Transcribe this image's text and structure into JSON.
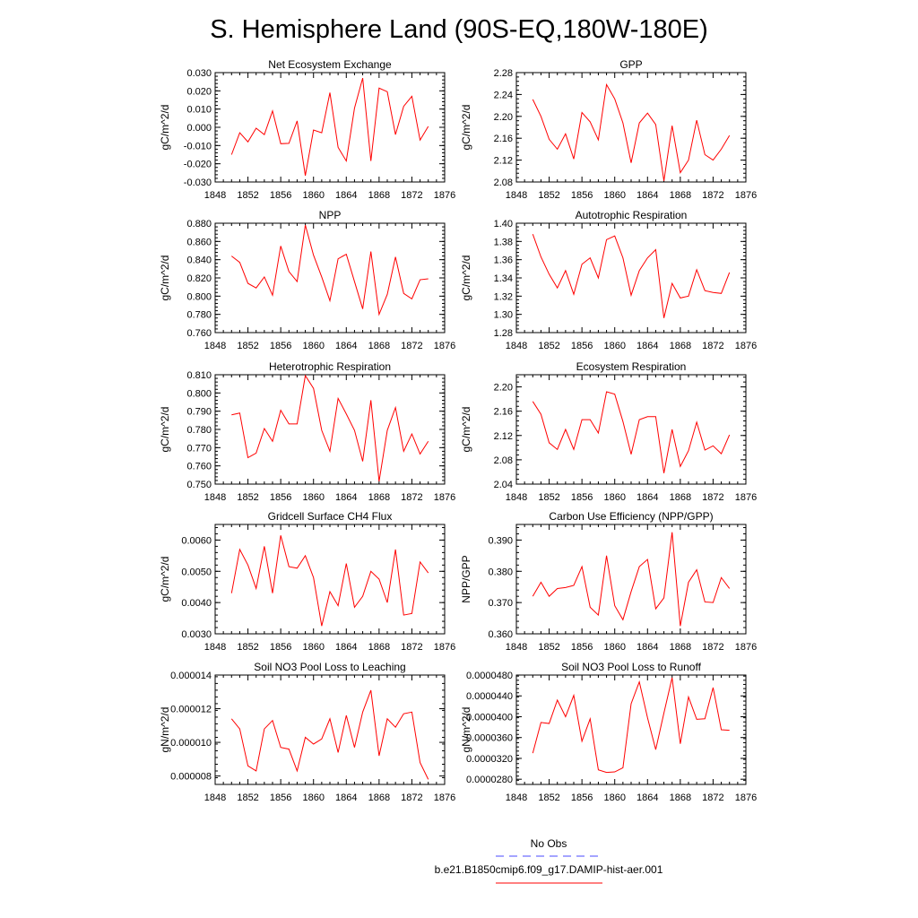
{
  "title": "S. Hemisphere Land (90S-EQ,180W-180E)",
  "colors": {
    "model_line": "#ff0000",
    "obs_line": "#4a4aff",
    "axis": "#000000"
  },
  "legend": {
    "entries": [
      {
        "label": "No Obs",
        "color": "#4a4aff",
        "dash": "dashed"
      },
      {
        "label": "b.e21.B1850cmip6.f09_g17.DAMIP-hist-aer.001",
        "color": "#ff0000",
        "dash": "solid"
      }
    ]
  },
  "chart_data": [
    {
      "type": "line",
      "title": "Net Ecosystem Exchange",
      "ylabel": "gC/m^2/d",
      "xlim": [
        1848,
        1876
      ],
      "ylim": [
        -0.03,
        0.03
      ],
      "xticks": [
        "1848",
        "1852",
        "1856",
        "1860",
        "1864",
        "1868",
        "1872",
        "1876"
      ],
      "yticks": [
        "-0.030",
        "-0.020",
        "-0.010",
        "0.000",
        "0.010",
        "0.020",
        "0.030"
      ],
      "x": [
        1850,
        1851,
        1852,
        1853,
        1854,
        1855,
        1856,
        1857,
        1858,
        1859,
        1860,
        1861,
        1862,
        1863,
        1864,
        1865,
        1866,
        1867,
        1868,
        1869,
        1870,
        1871,
        1872,
        1873,
        1874
      ],
      "series": [
        {
          "name": "b.e21.B1850cmip6.f09_g17.DAMIP-hist-aer.001",
          "values": [
            -0.015,
            -0.003,
            -0.008,
            -0.0005,
            -0.004,
            0.009,
            -0.009,
            -0.0088,
            0.0035,
            -0.0265,
            -0.0015,
            -0.003,
            0.019,
            -0.011,
            -0.0185,
            0.0105,
            0.027,
            -0.0185,
            0.0215,
            0.0195,
            -0.004,
            0.0115,
            0.017,
            -0.007,
            0.0005
          ]
        }
      ]
    },
    {
      "type": "line",
      "title": "GPP",
      "ylabel": "gC/m^2/d",
      "xlim": [
        1848,
        1876
      ],
      "ylim": [
        2.08,
        2.28
      ],
      "xticks": [
        "1848",
        "1852",
        "1856",
        "1860",
        "1864",
        "1868",
        "1872",
        "1876"
      ],
      "yticks": [
        "2.08",
        "2.12",
        "2.16",
        "2.20",
        "2.24",
        "2.28"
      ],
      "x": [
        1850,
        1851,
        1852,
        1853,
        1854,
        1855,
        1856,
        1857,
        1858,
        1859,
        1860,
        1861,
        1862,
        1863,
        1864,
        1865,
        1866,
        1867,
        1868,
        1869,
        1870,
        1871,
        1872,
        1873,
        1874
      ],
      "series": [
        {
          "name": "b.e21.B1850cmip6.f09_g17.DAMIP-hist-aer.001",
          "values": [
            2.231,
            2.2,
            2.158,
            2.14,
            2.168,
            2.122,
            2.207,
            2.19,
            2.157,
            2.258,
            2.232,
            2.188,
            2.115,
            2.188,
            2.206,
            2.185,
            2.082,
            2.183,
            2.097,
            2.12,
            2.193,
            2.13,
            2.12,
            2.14,
            2.165
          ]
        }
      ]
    },
    {
      "type": "line",
      "title": "NPP",
      "ylabel": "gC/m^2/d",
      "xlim": [
        1848,
        1876
      ],
      "ylim": [
        0.76,
        0.88
      ],
      "xticks": [
        "1848",
        "1852",
        "1856",
        "1860",
        "1864",
        "1868",
        "1872",
        "1876"
      ],
      "yticks": [
        "0.760",
        "0.780",
        "0.800",
        "0.820",
        "0.840",
        "0.860",
        "0.880"
      ],
      "x": [
        1850,
        1851,
        1852,
        1853,
        1854,
        1855,
        1856,
        1857,
        1858,
        1859,
        1860,
        1861,
        1862,
        1863,
        1864,
        1865,
        1866,
        1867,
        1868,
        1869,
        1870,
        1871,
        1872,
        1873,
        1874
      ],
      "series": [
        {
          "name": "b.e21.B1850cmip6.f09_g17.DAMIP-hist-aer.001",
          "values": [
            0.844,
            0.837,
            0.814,
            0.809,
            0.821,
            0.801,
            0.855,
            0.827,
            0.816,
            0.878,
            0.845,
            0.821,
            0.795,
            0.841,
            0.846,
            0.816,
            0.786,
            0.849,
            0.78,
            0.802,
            0.843,
            0.803,
            0.797,
            0.818,
            0.819
          ]
        }
      ]
    },
    {
      "type": "line",
      "title": "Autotrophic Respiration",
      "ylabel": "gC/m^2/d",
      "xlim": [
        1848,
        1876
      ],
      "ylim": [
        1.28,
        1.4
      ],
      "xticks": [
        "1848",
        "1852",
        "1856",
        "1860",
        "1864",
        "1868",
        "1872",
        "1876"
      ],
      "yticks": [
        "1.28",
        "1.30",
        "1.32",
        "1.34",
        "1.36",
        "1.38",
        "1.40"
      ],
      "x": [
        1850,
        1851,
        1852,
        1853,
        1854,
        1855,
        1856,
        1857,
        1858,
        1859,
        1860,
        1861,
        1862,
        1863,
        1864,
        1865,
        1866,
        1867,
        1868,
        1869,
        1870,
        1871,
        1872,
        1873,
        1874
      ],
      "series": [
        {
          "name": "b.e21.B1850cmip6.f09_g17.DAMIP-hist-aer.001",
          "values": [
            1.388,
            1.363,
            1.344,
            1.329,
            1.348,
            1.322,
            1.355,
            1.362,
            1.34,
            1.382,
            1.386,
            1.362,
            1.321,
            1.348,
            1.362,
            1.371,
            1.296,
            1.334,
            1.318,
            1.32,
            1.349,
            1.326,
            1.324,
            1.323,
            1.346
          ]
        }
      ]
    },
    {
      "type": "line",
      "title": "Heterotrophic Respiration",
      "ylabel": "gC/m^2/d",
      "xlim": [
        1848,
        1876
      ],
      "ylim": [
        0.75,
        0.81
      ],
      "xticks": [
        "1848",
        "1852",
        "1856",
        "1860",
        "1864",
        "1868",
        "1872",
        "1876"
      ],
      "yticks": [
        "0.750",
        "0.760",
        "0.770",
        "0.780",
        "0.790",
        "0.800",
        "0.810"
      ],
      "x": [
        1850,
        1851,
        1852,
        1853,
        1854,
        1855,
        1856,
        1857,
        1858,
        1859,
        1860,
        1861,
        1862,
        1863,
        1864,
        1865,
        1866,
        1867,
        1868,
        1869,
        1870,
        1871,
        1872,
        1873,
        1874
      ],
      "series": [
        {
          "name": "b.e21.B1850cmip6.f09_g17.DAMIP-hist-aer.001",
          "values": [
            0.788,
            0.789,
            0.7645,
            0.767,
            0.7805,
            0.7735,
            0.7905,
            0.783,
            0.783,
            0.8095,
            0.8025,
            0.7795,
            0.768,
            0.797,
            0.7885,
            0.7795,
            0.7625,
            0.796,
            0.7515,
            0.7795,
            0.792,
            0.768,
            0.7775,
            0.7665,
            0.7735
          ]
        }
      ]
    },
    {
      "type": "line",
      "title": "Ecosystem Respiration",
      "ylabel": "gC/m^2/d",
      "xlim": [
        1848,
        1876
      ],
      "ylim": [
        2.04,
        2.22
      ],
      "xticks": [
        "1848",
        "1852",
        "1856",
        "1860",
        "1864",
        "1868",
        "1872",
        "1876"
      ],
      "yticks": [
        "2.04",
        "2.08",
        "2.12",
        "2.16",
        "2.20"
      ],
      "x": [
        1850,
        1851,
        1852,
        1853,
        1854,
        1855,
        1856,
        1857,
        1858,
        1859,
        1860,
        1861,
        1862,
        1863,
        1864,
        1865,
        1866,
        1867,
        1868,
        1869,
        1870,
        1871,
        1872,
        1873,
        1874
      ],
      "series": [
        {
          "name": "b.e21.B1850cmip6.f09_g17.DAMIP-hist-aer.001",
          "values": [
            2.176,
            2.155,
            2.108,
            2.097,
            2.13,
            2.097,
            2.146,
            2.146,
            2.124,
            2.192,
            2.188,
            2.143,
            2.089,
            2.146,
            2.151,
            2.151,
            2.058,
            2.13,
            2.069,
            2.095,
            2.142,
            2.096,
            2.103,
            2.09,
            2.121
          ]
        }
      ]
    },
    {
      "type": "line",
      "title": "Gridcell Surface CH4 Flux",
      "ylabel": "gC/m^2/d",
      "xlim": [
        1848,
        1876
      ],
      "ylim": [
        0.003,
        0.0065
      ],
      "xticks": [
        "1848",
        "1852",
        "1856",
        "1860",
        "1864",
        "1868",
        "1872",
        "1876"
      ],
      "yticks": [
        "0.0030",
        "0.0040",
        "0.0050",
        "0.0060"
      ],
      "x": [
        1850,
        1851,
        1852,
        1853,
        1854,
        1855,
        1856,
        1857,
        1858,
        1859,
        1860,
        1861,
        1862,
        1863,
        1864,
        1865,
        1866,
        1867,
        1868,
        1869,
        1870,
        1871,
        1872,
        1873,
        1874
      ],
      "series": [
        {
          "name": "b.e21.B1850cmip6.f09_g17.DAMIP-hist-aer.001",
          "values": [
            0.0043,
            0.0057,
            0.0052,
            0.00445,
            0.0058,
            0.0043,
            0.00615,
            0.00515,
            0.0051,
            0.0055,
            0.0048,
            0.00325,
            0.00435,
            0.0039,
            0.00525,
            0.00385,
            0.0042,
            0.005,
            0.00475,
            0.004,
            0.0057,
            0.0036,
            0.00365,
            0.0053,
            0.00495
          ]
        }
      ]
    },
    {
      "type": "line",
      "title": "Carbon Use Efficiency (NPP/GPP)",
      "ylabel": "NPP/GPP",
      "xlim": [
        1848,
        1876
      ],
      "ylim": [
        0.36,
        0.395
      ],
      "xticks": [
        "1848",
        "1852",
        "1856",
        "1860",
        "1864",
        "1868",
        "1872",
        "1876"
      ],
      "yticks": [
        "0.360",
        "0.370",
        "0.380",
        "0.390"
      ],
      "x": [
        1850,
        1851,
        1852,
        1853,
        1854,
        1855,
        1856,
        1857,
        1858,
        1859,
        1860,
        1861,
        1862,
        1863,
        1864,
        1865,
        1866,
        1867,
        1868,
        1869,
        1870,
        1871,
        1872,
        1873,
        1874
      ],
      "series": [
        {
          "name": "b.e21.B1850cmip6.f09_g17.DAMIP-hist-aer.001",
          "values": [
            0.372,
            0.3765,
            0.372,
            0.3745,
            0.3748,
            0.3755,
            0.3815,
            0.3685,
            0.366,
            0.385,
            0.369,
            0.3645,
            0.3735,
            0.3815,
            0.3838,
            0.368,
            0.3715,
            0.3925,
            0.3625,
            0.3765,
            0.3805,
            0.3702,
            0.37,
            0.378,
            0.3745
          ]
        }
      ]
    },
    {
      "type": "line",
      "title": "Soil NO3 Pool Loss to Leaching",
      "ylabel": "gN/m^2/d",
      "xlim": [
        1848,
        1876
      ],
      "ylim": [
        7.5e-06,
        1.4e-05
      ],
      "xticks": [
        "1848",
        "1852",
        "1856",
        "1860",
        "1864",
        "1868",
        "1872",
        "1876"
      ],
      "yticks": [
        "0.000008",
        "0.000010",
        "0.000012",
        "0.000014"
      ],
      "x": [
        1850,
        1851,
        1852,
        1853,
        1854,
        1855,
        1856,
        1857,
        1858,
        1859,
        1860,
        1861,
        1862,
        1863,
        1864,
        1865,
        1866,
        1867,
        1868,
        1869,
        1870,
        1871,
        1872,
        1873,
        1874
      ],
      "series": [
        {
          "name": "b.e21.B1850cmip6.f09_g17.DAMIP-hist-aer.001",
          "values": [
            1.14e-05,
            1.08e-05,
            8.6e-06,
            8.3e-06,
            1.08e-05,
            1.13e-05,
            9.7e-06,
            9.6e-06,
            8.3e-06,
            1.03e-05,
            9.9e-06,
            1.02e-05,
            1.14e-05,
            9.4e-06,
            1.16e-05,
            9.7e-06,
            1.18e-05,
            1.31e-05,
            9.2e-06,
            1.14e-05,
            1.09e-05,
            1.17e-05,
            1.18e-05,
            8.8e-06,
            7.8e-06
          ]
        }
      ]
    },
    {
      "type": "line",
      "title": "Soil NO3 Pool Loss to Runoff",
      "ylabel": "gN/m^2/d",
      "xlim": [
        1848,
        1876
      ],
      "ylim": [
        2.7e-05,
        4.8e-05
      ],
      "xticks": [
        "1848",
        "1852",
        "1856",
        "1860",
        "1864",
        "1868",
        "1872",
        "1876"
      ],
      "yticks": [
        "0.0000280",
        "0.0000320",
        "0.0000360",
        "0.0000400",
        "0.0000440",
        "0.0000480"
      ],
      "x": [
        1850,
        1851,
        1852,
        1853,
        1854,
        1855,
        1856,
        1857,
        1858,
        1859,
        1860,
        1861,
        1862,
        1863,
        1864,
        1865,
        1866,
        1867,
        1868,
        1869,
        1870,
        1871,
        1872,
        1873,
        1874
      ],
      "series": [
        {
          "name": "b.e21.B1850cmip6.f09_g17.DAMIP-hist-aer.001",
          "values": [
            3.3e-05,
            3.89e-05,
            3.87e-05,
            4.32e-05,
            4e-05,
            4.41e-05,
            3.53e-05,
            3.96e-05,
            2.98e-05,
            2.93e-05,
            2.94e-05,
            3.02e-05,
            4.25e-05,
            4.67e-05,
            3.98e-05,
            3.37e-05,
            4.07e-05,
            4.75e-05,
            3.48e-05,
            4.38e-05,
            3.95e-05,
            3.96e-05,
            4.56e-05,
            3.75e-05,
            3.74e-05
          ]
        }
      ]
    }
  ]
}
